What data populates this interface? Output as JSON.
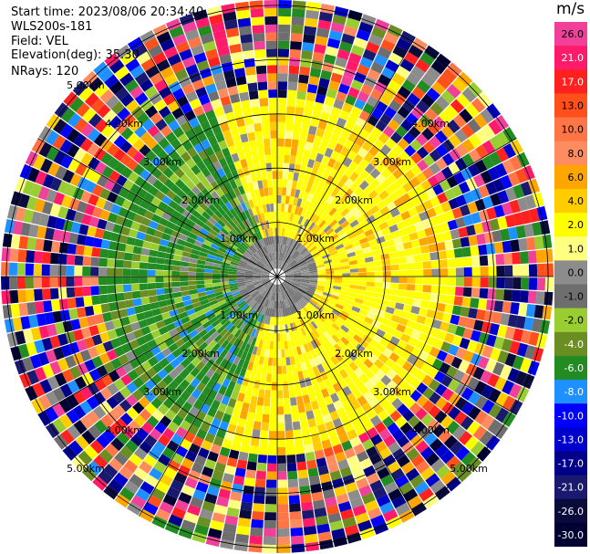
{
  "header": {
    "start_time": "Start time: 2023/08/06 20:34:40",
    "instrument": "WLS200s-181",
    "field": "Field: VEL",
    "elevation": "Elevation(deg): 35.30",
    "nrays": "NRays: 120"
  },
  "colorbar": {
    "unit": "m/s",
    "ticks": [
      "26.0",
      "21.0",
      "17.0",
      "13.0",
      "10.0",
      "8.0",
      "6.0",
      "4.0",
      "2.0",
      "1.0",
      "0.0",
      "-1.0",
      "-2.0",
      "-4.0",
      "-6.0",
      "-8.0",
      "-10.0",
      "-13.0",
      "-17.0",
      "-21.0",
      "-26.0",
      "-30.0"
    ],
    "colors": [
      "#f0409a",
      "#ff1a6a",
      "#ff2020",
      "#ff4f1a",
      "#ff7545",
      "#ff8c60",
      "#ffa500",
      "#ffcc00",
      "#ffff00",
      "#ffff80",
      "#8c8c8c",
      "#6e6e6e",
      "#9acd32",
      "#6b8e23",
      "#228b22",
      "#1e90ff",
      "#0000ff",
      "#0000cd",
      "#00008b",
      "#191970",
      "#0b0b3b",
      "#000033"
    ]
  },
  "chart_data": {
    "type": "heatmap",
    "projection": "polar PPI",
    "field": "VEL",
    "rays": 120,
    "range_rings_km": [
      "1.00km",
      "2.00km",
      "3.00km",
      "4.00km",
      "5.00km"
    ],
    "range_rings_values": [
      1,
      2,
      3,
      4,
      5
    ],
    "max_range_km": 5.1,
    "sector_labels": {
      "northwest": [
        "5.00km",
        "4.00km",
        "3.00km",
        "2.00km",
        "1.00km"
      ],
      "northeast": [
        "4.00km",
        "3.00km",
        "2.00km",
        "1.00km"
      ],
      "southwest": [
        "5.00km",
        "4.00km",
        "3.00km",
        "2.00km",
        "1.00km"
      ],
      "southeast": [
        "5.00km",
        "4.00km",
        "3.00km",
        "2.00km",
        "1.00km"
      ]
    },
    "value_min": -30.0,
    "value_max": 26.0
  }
}
